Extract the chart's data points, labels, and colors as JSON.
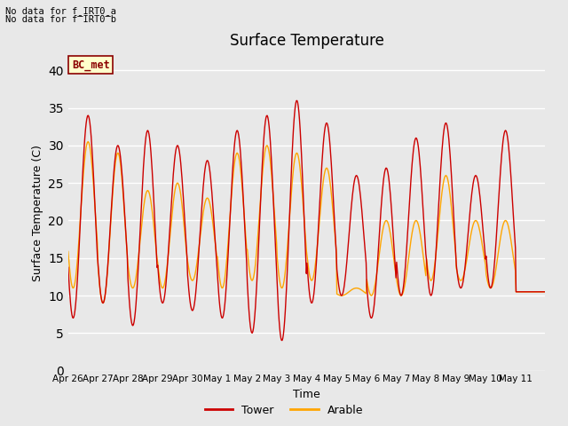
{
  "title": "Surface Temperature",
  "ylabel": "Surface Temperature (C)",
  "xlabel": "Time",
  "bg_color": "#e8e8e8",
  "tower_color": "#cc0000",
  "arable_color": "#ffa500",
  "ylim": [
    0,
    42
  ],
  "yticks": [
    0,
    5,
    10,
    15,
    20,
    25,
    30,
    35,
    40
  ],
  "annotation_text1": "No data for f_IRT0_a",
  "annotation_text2": "No data for f¯IRT0¯b",
  "legend_label_text": "BC_met",
  "xtick_labels": [
    "Apr 26",
    "Apr 27",
    "Apr 28",
    "Apr 29",
    "Apr 30",
    "May 1",
    "May 2",
    "May 3",
    "May 4",
    "May 5",
    "May 6",
    "May 7",
    "May 8",
    "May 9",
    "May 10",
    "May 11"
  ],
  "num_days": 16,
  "tower_peaks": [
    34,
    30,
    32,
    30,
    28,
    32,
    34,
    36,
    33,
    26,
    27,
    31,
    33,
    26,
    32,
    10.5
  ],
  "tower_mins": [
    7,
    9,
    6,
    9,
    8,
    7,
    5,
    4,
    9,
    10,
    7,
    10,
    10,
    11,
    11,
    10.5
  ],
  "arable_peaks": [
    30.5,
    29,
    24,
    25,
    23,
    29,
    30,
    29,
    27,
    11,
    20,
    20,
    26,
    20,
    20,
    10.5
  ],
  "arable_mins": [
    11,
    9,
    11,
    11,
    12,
    11,
    12,
    11,
    12,
    10,
    10,
    10,
    12,
    12,
    11,
    10.5
  ]
}
